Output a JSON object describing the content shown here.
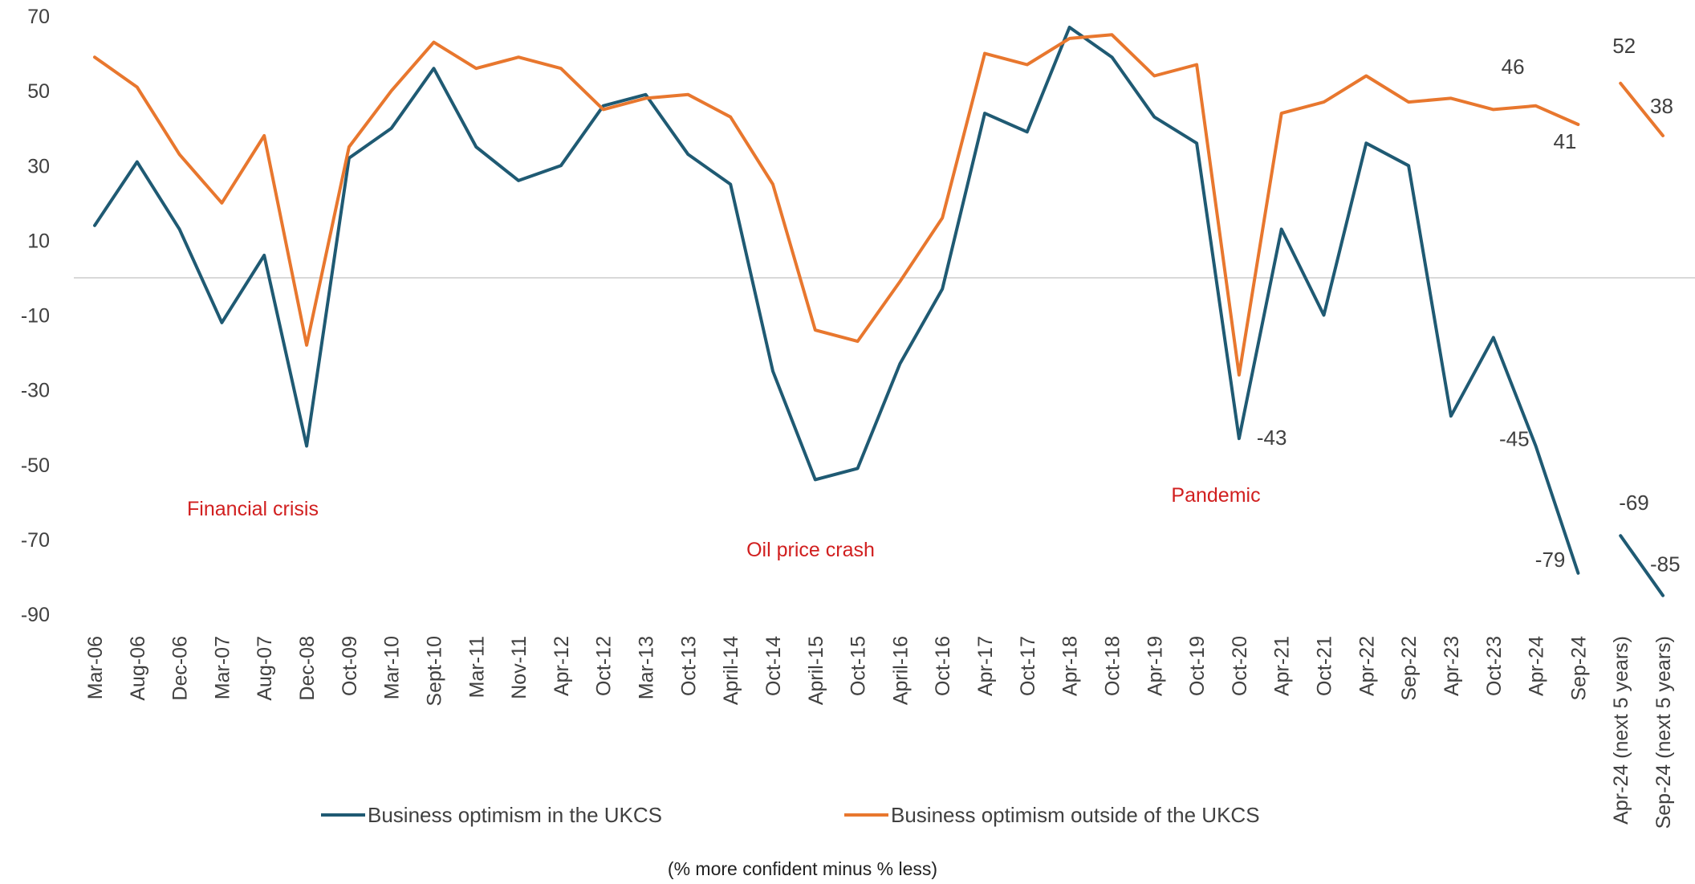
{
  "chart_data": {
    "type": "line",
    "categories": [
      "Mar-06",
      "Aug-06",
      "Dec-06",
      "Mar-07",
      "Aug-07",
      "Dec-08",
      "Oct-09",
      "Mar-10",
      "Sept-10",
      "Mar-11",
      "Nov-11",
      "Apr-12",
      "Oct-12",
      "Mar-13",
      "Oct-13",
      "April-14",
      "Oct-14",
      "April-15",
      "Oct-15",
      "April-16",
      "Oct-16",
      "Apr-17",
      "Oct-17",
      "Apr-18",
      "Oct-18",
      "Apr-19",
      "Oct-19",
      "Oct-20",
      "Apr-21",
      "Oct-21",
      "Apr-22",
      "Sep-22",
      "Apr-23",
      "Oct-23",
      "Apr-24",
      "Sep-24",
      "Apr-24 (next 5 years)",
      "Sep-24 (next 5 years)"
    ],
    "series": [
      {
        "name": "Business optimism in the UKCS",
        "color": "#1f5a73",
        "segments": [
          [
            14,
            31,
            13,
            -12,
            6,
            -45,
            32,
            40,
            56,
            35,
            26,
            30,
            46,
            49,
            33,
            25,
            -25,
            -54,
            -51,
            -23,
            -3,
            44,
            39,
            67,
            59,
            43,
            36,
            -43,
            13,
            -10,
            36,
            30,
            -37,
            -16,
            -45,
            -79
          ],
          [
            -69,
            -85
          ]
        ]
      },
      {
        "name": "Business optimism outside of the UKCS",
        "color": "#e8772e",
        "segments": [
          [
            59,
            51,
            33,
            20,
            38,
            -18,
            35,
            50,
            63,
            56,
            59,
            56,
            45,
            48,
            49,
            43,
            25,
            -14,
            -17,
            -1,
            16,
            60,
            57,
            64,
            65,
            54,
            57,
            -26,
            44,
            47,
            54,
            47,
            48,
            45,
            46,
            41
          ],
          [
            52,
            38
          ]
        ]
      }
    ],
    "ylim": [
      -90,
      70
    ],
    "yticks": [
      70,
      50,
      30,
      10,
      -10,
      -30,
      -50,
      -70,
      -90
    ],
    "zero_line": true,
    "grid": false,
    "legend_position": "bottom",
    "data_labels": [
      {
        "series": 0,
        "index": 27,
        "text": "-43"
      },
      {
        "series": 0,
        "index": 34,
        "text": "-45"
      },
      {
        "series": 0,
        "index": 35,
        "text": "-79"
      },
      {
        "series": 0,
        "index": 36,
        "text": "-69"
      },
      {
        "series": 0,
        "index": 37,
        "text": "-85"
      },
      {
        "series": 1,
        "index": 34,
        "text": "46"
      },
      {
        "series": 1,
        "index": 35,
        "text": "41"
      },
      {
        "series": 1,
        "index": 36,
        "text": "52"
      },
      {
        "series": 1,
        "index": 37,
        "text": "38"
      }
    ],
    "annotations": [
      "Financial crisis",
      "Oil price crash",
      "Pandemic"
    ],
    "note": "(% more confident minus % less)"
  }
}
